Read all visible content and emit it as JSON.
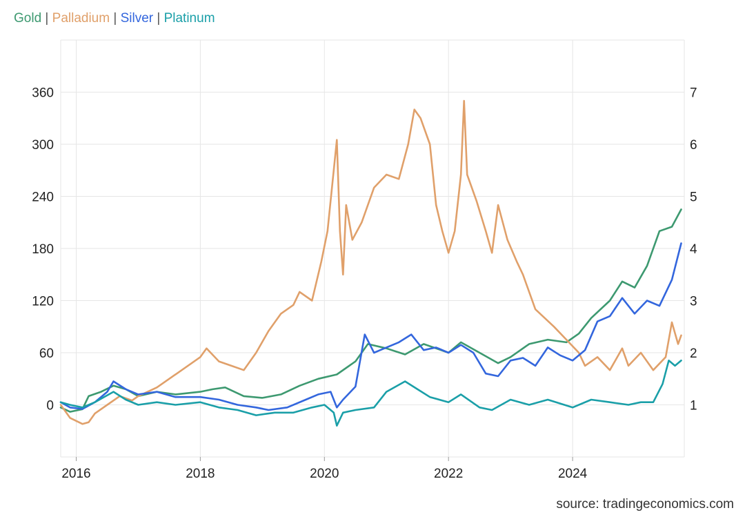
{
  "legend": {
    "items": [
      {
        "label": "Gold",
        "color": "#3d9970"
      },
      {
        "label": "Palladium",
        "color": "#e0a06a"
      },
      {
        "label": "Silver",
        "color": "#3366dd"
      },
      {
        "label": "Platinum",
        "color": "#1a9fa8"
      }
    ],
    "separator": "|"
  },
  "source": "source: tradingeconomics.com",
  "chart_data": {
    "type": "line",
    "grid": true,
    "xlim": [
      2015.75,
      2025.8
    ],
    "x_ticks": [
      "2016",
      "2018",
      "2020",
      "2022",
      "2024"
    ],
    "ylim_left": [
      -60,
      420
    ],
    "y_ticks_left": [
      "0",
      "60",
      "120",
      "180",
      "240",
      "300",
      "360"
    ],
    "ylim_right": [
      0.0,
      8.0
    ],
    "y_ticks_right": [
      "1",
      "2",
      "3",
      "4",
      "5",
      "6",
      "7"
    ],
    "series": [
      {
        "name": "Gold",
        "axis": "left",
        "color": "#3d9970",
        "points": [
          [
            2015.75,
            -3
          ],
          [
            2015.9,
            -8
          ],
          [
            2016.1,
            -5
          ],
          [
            2016.2,
            10
          ],
          [
            2016.4,
            15
          ],
          [
            2016.6,
            22
          ],
          [
            2016.8,
            18
          ],
          [
            2017.0,
            10
          ],
          [
            2017.3,
            15
          ],
          [
            2017.6,
            12
          ],
          [
            2018.0,
            15
          ],
          [
            2018.2,
            18
          ],
          [
            2018.4,
            20
          ],
          [
            2018.7,
            10
          ],
          [
            2019.0,
            8
          ],
          [
            2019.3,
            12
          ],
          [
            2019.6,
            22
          ],
          [
            2019.9,
            30
          ],
          [
            2020.2,
            35
          ],
          [
            2020.5,
            50
          ],
          [
            2020.7,
            70
          ],
          [
            2021.0,
            65
          ],
          [
            2021.3,
            58
          ],
          [
            2021.6,
            70
          ],
          [
            2022.0,
            60
          ],
          [
            2022.2,
            72
          ],
          [
            2022.5,
            60
          ],
          [
            2022.8,
            48
          ],
          [
            2023.0,
            55
          ],
          [
            2023.3,
            70
          ],
          [
            2023.6,
            75
          ],
          [
            2023.9,
            72
          ],
          [
            2024.1,
            82
          ],
          [
            2024.3,
            100
          ],
          [
            2024.6,
            120
          ],
          [
            2024.8,
            142
          ],
          [
            2025.0,
            135
          ],
          [
            2025.2,
            160
          ],
          [
            2025.4,
            200
          ],
          [
            2025.6,
            205
          ],
          [
            2025.75,
            225
          ]
        ]
      },
      {
        "name": "Palladium",
        "axis": "left",
        "color": "#e0a06a",
        "points": [
          [
            2015.75,
            0
          ],
          [
            2015.9,
            -15
          ],
          [
            2016.1,
            -22
          ],
          [
            2016.2,
            -20
          ],
          [
            2016.3,
            -10
          ],
          [
            2016.5,
            0
          ],
          [
            2016.7,
            10
          ],
          [
            2016.9,
            5
          ],
          [
            2017.0,
            10
          ],
          [
            2017.3,
            20
          ],
          [
            2017.6,
            35
          ],
          [
            2017.8,
            45
          ],
          [
            2018.0,
            55
          ],
          [
            2018.1,
            65
          ],
          [
            2018.3,
            50
          ],
          [
            2018.5,
            45
          ],
          [
            2018.7,
            40
          ],
          [
            2018.9,
            60
          ],
          [
            2019.1,
            85
          ],
          [
            2019.3,
            105
          ],
          [
            2019.5,
            115
          ],
          [
            2019.6,
            130
          ],
          [
            2019.8,
            120
          ],
          [
            2019.95,
            165
          ],
          [
            2020.05,
            200
          ],
          [
            2020.15,
            270
          ],
          [
            2020.2,
            305
          ],
          [
            2020.25,
            200
          ],
          [
            2020.3,
            150
          ],
          [
            2020.35,
            230
          ],
          [
            2020.45,
            190
          ],
          [
            2020.6,
            210
          ],
          [
            2020.8,
            250
          ],
          [
            2021.0,
            265
          ],
          [
            2021.2,
            260
          ],
          [
            2021.35,
            300
          ],
          [
            2021.45,
            340
          ],
          [
            2021.55,
            330
          ],
          [
            2021.7,
            300
          ],
          [
            2021.8,
            230
          ],
          [
            2021.9,
            200
          ],
          [
            2022.0,
            175
          ],
          [
            2022.1,
            200
          ],
          [
            2022.2,
            265
          ],
          [
            2022.25,
            350
          ],
          [
            2022.3,
            265
          ],
          [
            2022.45,
            235
          ],
          [
            2022.6,
            200
          ],
          [
            2022.7,
            175
          ],
          [
            2022.8,
            230
          ],
          [
            2022.95,
            190
          ],
          [
            2023.1,
            165
          ],
          [
            2023.2,
            150
          ],
          [
            2023.4,
            110
          ],
          [
            2023.55,
            100
          ],
          [
            2023.7,
            90
          ],
          [
            2023.9,
            75
          ],
          [
            2024.1,
            60
          ],
          [
            2024.2,
            45
          ],
          [
            2024.4,
            55
          ],
          [
            2024.6,
            40
          ],
          [
            2024.8,
            65
          ],
          [
            2024.9,
            45
          ],
          [
            2025.1,
            60
          ],
          [
            2025.3,
            40
          ],
          [
            2025.5,
            55
          ],
          [
            2025.6,
            95
          ],
          [
            2025.7,
            70
          ],
          [
            2025.75,
            80
          ]
        ]
      },
      {
        "name": "Silver",
        "axis": "right",
        "color": "#3366dd",
        "points": [
          [
            2015.75,
            1.05
          ],
          [
            2015.9,
            0.95
          ],
          [
            2016.1,
            0.92
          ],
          [
            2016.3,
            1.05
          ],
          [
            2016.5,
            1.25
          ],
          [
            2016.6,
            1.45
          ],
          [
            2016.8,
            1.3
          ],
          [
            2017.0,
            1.2
          ],
          [
            2017.3,
            1.25
          ],
          [
            2017.6,
            1.15
          ],
          [
            2018.0,
            1.15
          ],
          [
            2018.3,
            1.1
          ],
          [
            2018.6,
            1.0
          ],
          [
            2018.9,
            0.95
          ],
          [
            2019.1,
            0.9
          ],
          [
            2019.4,
            0.95
          ],
          [
            2019.7,
            1.1
          ],
          [
            2019.9,
            1.2
          ],
          [
            2020.1,
            1.25
          ],
          [
            2020.2,
            0.95
          ],
          [
            2020.3,
            1.1
          ],
          [
            2020.5,
            1.35
          ],
          [
            2020.65,
            2.35
          ],
          [
            2020.8,
            2.0
          ],
          [
            2021.0,
            2.1
          ],
          [
            2021.2,
            2.2
          ],
          [
            2021.4,
            2.35
          ],
          [
            2021.6,
            2.05
          ],
          [
            2021.8,
            2.1
          ],
          [
            2022.0,
            2.0
          ],
          [
            2022.2,
            2.15
          ],
          [
            2022.4,
            2.0
          ],
          [
            2022.6,
            1.6
          ],
          [
            2022.8,
            1.55
          ],
          [
            2023.0,
            1.85
          ],
          [
            2023.2,
            1.9
          ],
          [
            2023.4,
            1.75
          ],
          [
            2023.6,
            2.1
          ],
          [
            2023.8,
            1.95
          ],
          [
            2024.0,
            1.85
          ],
          [
            2024.2,
            2.05
          ],
          [
            2024.4,
            2.6
          ],
          [
            2024.6,
            2.7
          ],
          [
            2024.8,
            3.05
          ],
          [
            2025.0,
            2.75
          ],
          [
            2025.2,
            3.0
          ],
          [
            2025.4,
            2.9
          ],
          [
            2025.6,
            3.4
          ],
          [
            2025.75,
            4.1
          ]
        ]
      },
      {
        "name": "Platinum",
        "axis": "right",
        "color": "#1a9fa8",
        "points": [
          [
            2015.75,
            1.05
          ],
          [
            2015.9,
            1.0
          ],
          [
            2016.1,
            0.95
          ],
          [
            2016.3,
            1.05
          ],
          [
            2016.6,
            1.25
          ],
          [
            2016.8,
            1.1
          ],
          [
            2017.0,
            1.0
          ],
          [
            2017.3,
            1.05
          ],
          [
            2017.6,
            1.0
          ],
          [
            2018.0,
            1.05
          ],
          [
            2018.3,
            0.95
          ],
          [
            2018.6,
            0.9
          ],
          [
            2018.9,
            0.8
          ],
          [
            2019.2,
            0.85
          ],
          [
            2019.5,
            0.85
          ],
          [
            2019.8,
            0.95
          ],
          [
            2020.0,
            1.0
          ],
          [
            2020.15,
            0.85
          ],
          [
            2020.2,
            0.6
          ],
          [
            2020.3,
            0.85
          ],
          [
            2020.5,
            0.9
          ],
          [
            2020.8,
            0.95
          ],
          [
            2021.0,
            1.25
          ],
          [
            2021.3,
            1.45
          ],
          [
            2021.5,
            1.3
          ],
          [
            2021.7,
            1.15
          ],
          [
            2022.0,
            1.05
          ],
          [
            2022.2,
            1.2
          ],
          [
            2022.5,
            0.95
          ],
          [
            2022.7,
            0.9
          ],
          [
            2023.0,
            1.1
          ],
          [
            2023.3,
            1.0
          ],
          [
            2023.6,
            1.1
          ],
          [
            2024.0,
            0.95
          ],
          [
            2024.3,
            1.1
          ],
          [
            2024.6,
            1.05
          ],
          [
            2024.9,
            1.0
          ],
          [
            2025.1,
            1.05
          ],
          [
            2025.3,
            1.05
          ],
          [
            2025.45,
            1.4
          ],
          [
            2025.55,
            1.85
          ],
          [
            2025.65,
            1.75
          ],
          [
            2025.75,
            1.85
          ]
        ]
      }
    ]
  }
}
